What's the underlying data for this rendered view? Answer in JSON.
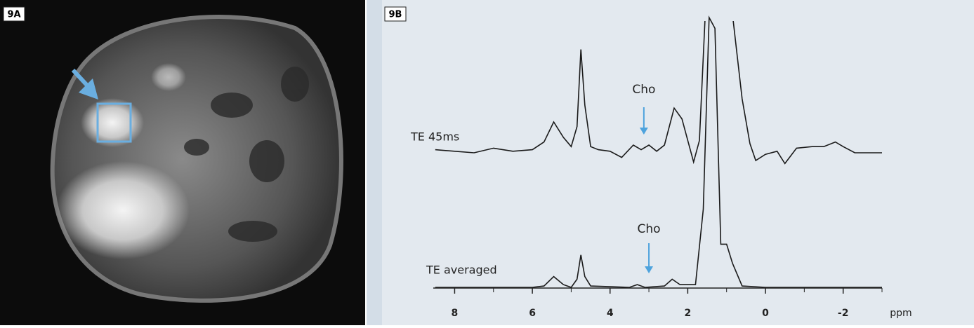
{
  "panels": [
    {
      "label": "9A"
    },
    {
      "label": "9B"
    }
  ],
  "chart_data": [
    {
      "type": "line",
      "x": [
        8.5,
        8.5,
        8,
        7.5,
        7,
        6.5,
        6,
        5.7,
        5.45,
        5.2,
        5,
        4.85,
        4.75,
        4.65,
        4.5,
        4.3,
        4,
        3.7,
        3.4,
        3.2,
        3,
        2.8,
        2.6,
        2.35,
        2.15,
        2,
        1.85,
        1.7,
        1.55,
        1.45,
        1.2,
        0.85,
        0.6,
        0.4,
        0.25,
        0,
        -0.3,
        -0.5,
        -0.8,
        -1.2,
        -1.5,
        -1.8,
        -2,
        -2.3,
        -3
      ],
      "series": [
        {
          "name": "TE 45ms",
          "color": "#1a1a1a",
          "values": [
            12,
            12,
            11,
            10,
            13,
            11,
            12,
            17,
            30,
            20,
            14,
            27,
            77,
            41,
            14,
            12,
            11,
            7,
            15,
            12,
            15,
            11,
            15,
            39,
            32,
            18,
            4,
            18,
            100,
            100,
            100,
            100,
            45,
            16,
            5,
            9,
            11,
            3,
            13,
            14,
            14,
            17,
            14,
            10,
            10
          ]
        }
      ],
      "xlim": [
        8.55,
        -3
      ],
      "ylim": [
        0,
        100
      ],
      "annotations": [
        {
          "text": "Cho",
          "x": 3.13
        }
      ]
    },
    {
      "type": "line",
      "x": [
        8.5,
        7,
        6,
        5.7,
        5.45,
        5.2,
        5,
        4.85,
        4.75,
        4.65,
        4.5,
        3.5,
        3.3,
        3.1,
        2.6,
        2.4,
        2.2,
        1.8,
        1.6,
        1.45,
        1.3,
        1.15,
        1,
        0.85,
        0.6,
        0,
        -3
      ],
      "series": [
        {
          "name": "TE averaged",
          "color": "#1a1a1a",
          "values": [
            0,
            0,
            0,
            0.5,
            4,
            1,
            0,
            3,
            12,
            4,
            0.5,
            0,
            1,
            0,
            0.5,
            3,
            1,
            1,
            29,
            100,
            96,
            16,
            16,
            9,
            0.5,
            0,
            0
          ]
        }
      ],
      "xlim": [
        8.55,
        -3
      ],
      "ylim": [
        0,
        100
      ],
      "xticks": [
        8,
        6,
        4,
        2,
        0,
        -2
      ],
      "xlabel": "ppm",
      "annotations": [
        {
          "text": "Cho",
          "x": 3.0
        }
      ]
    }
  ]
}
